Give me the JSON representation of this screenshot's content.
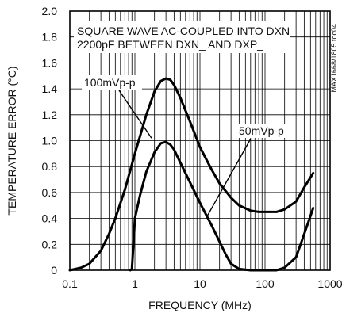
{
  "chart_data": {
    "type": "line",
    "title": "",
    "xlabel": "FREQUENCY (MHz)",
    "ylabel": "TEMPERATURE ERROR (°C)",
    "x_scale": "log",
    "xlim": [
      0.1,
      1000
    ],
    "ylim": [
      0,
      2.0
    ],
    "grid": true,
    "x_ticks": [
      {
        "value": 0.1,
        "label": "0.1"
      },
      {
        "value": 1,
        "label": "1"
      },
      {
        "value": 10,
        "label": "10"
      },
      {
        "value": 100,
        "label": "100"
      },
      {
        "value": 1000,
        "label": "1000"
      }
    ],
    "y_ticks": [
      {
        "value": 0,
        "label": "0"
      },
      {
        "value": 0.2,
        "label": "0.2"
      },
      {
        "value": 0.4,
        "label": "0.4"
      },
      {
        "value": 0.6,
        "label": "0.6"
      },
      {
        "value": 0.8,
        "label": "0.8"
      },
      {
        "value": 1.0,
        "label": "1.0"
      },
      {
        "value": 1.2,
        "label": "1.2"
      },
      {
        "value": 1.4,
        "label": "1.4"
      },
      {
        "value": 1.6,
        "label": "1.6"
      },
      {
        "value": 1.8,
        "label": "1.8"
      },
      {
        "value": 2.0,
        "label": "2.0"
      }
    ],
    "annotations": {
      "condition_line1": "SQUARE WAVE AC-COUPLED INTO DXN",
      "condition_line2": "2200pF BETWEEN DXN_ AND DXP_",
      "figure_id": "MAX1668/1805 toc04"
    },
    "series": [
      {
        "name": "100mVp-p",
        "points": [
          [
            0.1,
            0.0
          ],
          [
            0.15,
            0.02
          ],
          [
            0.2,
            0.05
          ],
          [
            0.3,
            0.15
          ],
          [
            0.4,
            0.28
          ],
          [
            0.5,
            0.4
          ],
          [
            0.7,
            0.62
          ],
          [
            1.0,
            0.9
          ],
          [
            1.5,
            1.2
          ],
          [
            2.0,
            1.38
          ],
          [
            2.5,
            1.46
          ],
          [
            3.0,
            1.48
          ],
          [
            3.5,
            1.47
          ],
          [
            4.0,
            1.43
          ],
          [
            5.0,
            1.33
          ],
          [
            7.0,
            1.15
          ],
          [
            10.0,
            0.95
          ],
          [
            15.0,
            0.78
          ],
          [
            20.0,
            0.67
          ],
          [
            30.0,
            0.56
          ],
          [
            40.0,
            0.5
          ],
          [
            60.0,
            0.46
          ],
          [
            80.0,
            0.45
          ],
          [
            100.0,
            0.45
          ],
          [
            150.0,
            0.45
          ],
          [
            200.0,
            0.47
          ],
          [
            300.0,
            0.53
          ],
          [
            400.0,
            0.64
          ],
          [
            550.0,
            0.75
          ]
        ]
      },
      {
        "name": "50mVp-p",
        "points": [
          [
            0.85,
            0.0
          ],
          [
            0.9,
            0.01
          ],
          [
            0.95,
            0.2
          ],
          [
            1.0,
            0.4
          ],
          [
            1.2,
            0.58
          ],
          [
            1.5,
            0.76
          ],
          [
            2.0,
            0.91
          ],
          [
            2.5,
            0.98
          ],
          [
            3.0,
            0.99
          ],
          [
            3.5,
            0.97
          ],
          [
            4.0,
            0.93
          ],
          [
            5.0,
            0.83
          ],
          [
            7.0,
            0.68
          ],
          [
            10.0,
            0.52
          ],
          [
            15.0,
            0.35
          ],
          [
            20.0,
            0.22
          ],
          [
            25.0,
            0.12
          ],
          [
            30.0,
            0.05
          ],
          [
            40.0,
            0.01
          ],
          [
            60.0,
            0.0
          ],
          [
            150.0,
            0.0
          ],
          [
            200.0,
            0.02
          ],
          [
            300.0,
            0.1
          ],
          [
            400.0,
            0.28
          ],
          [
            550.0,
            0.48
          ]
        ]
      }
    ]
  }
}
